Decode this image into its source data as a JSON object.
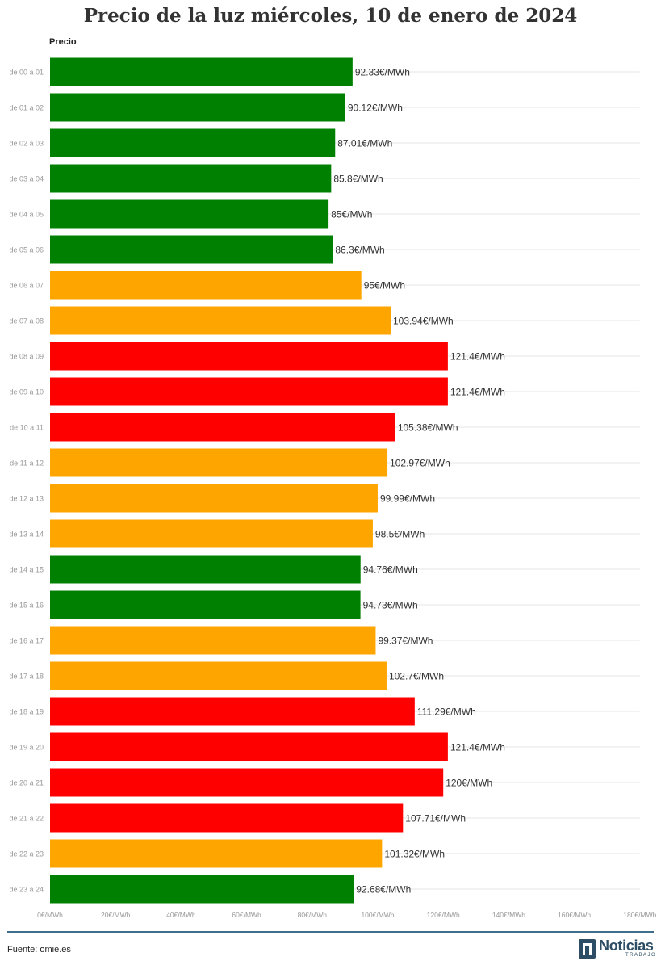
{
  "title": "Precio de la luz miércoles, 10 de enero de 2024",
  "footer": {
    "source": "Fuente: omie.es",
    "logo_name": "Noticias",
    "logo_sub": "TRABAJO"
  },
  "colors": {
    "low": "#008000",
    "mid": "#ffa500",
    "high": "#ff0000"
  },
  "chart_data": {
    "type": "bar",
    "orientation": "horizontal",
    "column_header": "Precio",
    "categories": [
      "de 00 a 01",
      "de 01 a 02",
      "de 02 a 03",
      "de 03 a 04",
      "de 04 a 05",
      "de 05 a 06",
      "de 06 a 07",
      "de 07 a 08",
      "de 08 a 09",
      "de 09 a 10",
      "de 10 a 11",
      "de 11 a 12",
      "de 12 a 13",
      "de 13 a 14",
      "de 14 a 15",
      "de 15 a 16",
      "de 16 a 17",
      "de 17 a 18",
      "de 18 a 19",
      "de 19 a 20",
      "de 20 a 21",
      "de 21 a 22",
      "de 22 a 23",
      "de 23 a 24"
    ],
    "values": [
      92.33,
      90.12,
      87.01,
      85.8,
      85,
      86.3,
      95,
      103.94,
      121.4,
      121.4,
      105.38,
      102.97,
      99.99,
      98.5,
      94.76,
      94.73,
      99.37,
      102.7,
      111.29,
      121.4,
      120,
      107.71,
      101.32,
      92.68
    ],
    "value_labels": [
      "92.33€/MWh",
      "90.12€/MWh",
      "87.01€/MWh",
      "85.8€/MWh",
      "85€/MWh",
      "86.3€/MWh",
      "95€/MWh",
      "103.94€/MWh",
      "121.4€/MWh",
      "121.4€/MWh",
      "105.38€/MWh",
      "102.97€/MWh",
      "99.99€/MWh",
      "98.5€/MWh",
      "94.76€/MWh",
      "94.73€/MWh",
      "99.37€/MWh",
      "102.7€/MWh",
      "111.29€/MWh",
      "121.4€/MWh",
      "120€/MWh",
      "107.71€/MWh",
      "101.32€/MWh",
      "92.68€/MWh"
    ],
    "bar_colors": [
      "low",
      "low",
      "low",
      "low",
      "low",
      "low",
      "mid",
      "mid",
      "high",
      "high",
      "high",
      "mid",
      "mid",
      "mid",
      "low",
      "low",
      "mid",
      "mid",
      "high",
      "high",
      "high",
      "high",
      "mid",
      "low"
    ],
    "x_ticks": [
      0,
      20,
      40,
      60,
      80,
      100,
      120,
      140,
      160,
      180
    ],
    "x_tick_labels": [
      "0€/MWh",
      "20€/MWh",
      "40€/MWh",
      "60€/MWh",
      "80€/MWh",
      "100€/MWh",
      "120€/MWh",
      "140€/MWh",
      "160€/MWh",
      "180€/MWh"
    ],
    "xlim": [
      0,
      180
    ],
    "grid": true
  }
}
